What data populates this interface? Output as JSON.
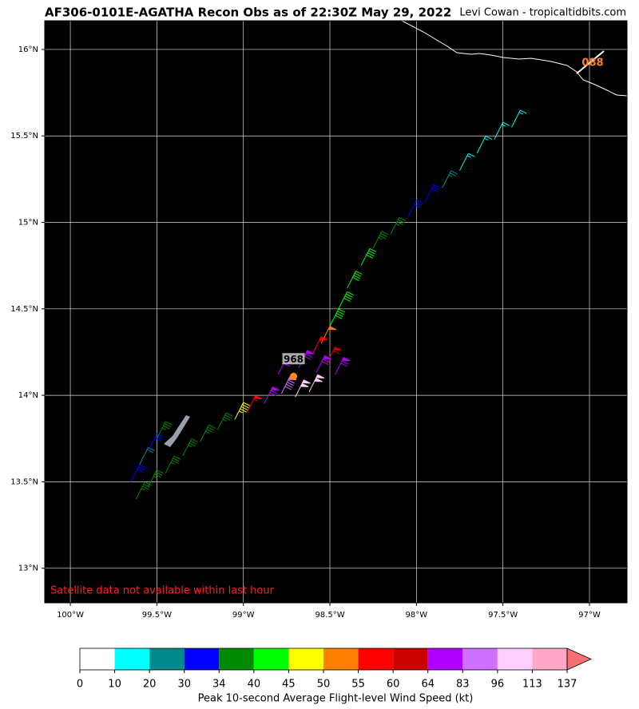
{
  "chart_data": {
    "type": "barbs",
    "title": "AF306-0101E-AGATHA Recon Obs as of 22:30Z May 29, 2022",
    "credit": "Levi Cowan - tropicaltidbits.com",
    "note": "Satellite data not available within last hour",
    "xlim": [
      -100.148,
      -96.783
    ],
    "ylim": [
      12.8,
      16.166
    ],
    "xticks": [
      {
        "value": -100,
        "label": "100°W"
      },
      {
        "value": -99.5,
        "label": "99.5°W"
      },
      {
        "value": -99,
        "label": "99°W"
      },
      {
        "value": -98.5,
        "label": "98.5°W"
      },
      {
        "value": -98,
        "label": "98°W"
      },
      {
        "value": -97.5,
        "label": "97.5°W"
      },
      {
        "value": -97,
        "label": "97°W"
      }
    ],
    "yticks": [
      {
        "value": 13,
        "label": "13°N"
      },
      {
        "value": 13.5,
        "label": "13.5°N"
      },
      {
        "value": 14,
        "label": "14°N"
      },
      {
        "value": 14.5,
        "label": "14.5°N"
      },
      {
        "value": 15,
        "label": "15°N"
      },
      {
        "value": 15.5,
        "label": "15.5°N"
      },
      {
        "value": 16,
        "label": "16°N"
      }
    ],
    "grid": true,
    "observations": {
      "lon": [
        -97.45,
        -97.55,
        -97.65,
        -97.75,
        -97.85,
        -97.95,
        -98.05,
        -98.15,
        -98.25,
        -98.32,
        -98.4,
        -98.45,
        -98.5,
        -98.55,
        -98.6,
        -98.52,
        -98.47,
        -98.58,
        -98.68,
        -98.8,
        -98.78,
        -98.7,
        -98.62,
        -98.88,
        -98.98,
        -99.05,
        -99.15,
        -99.25,
        -99.35,
        -99.45,
        -99.55,
        -99.62,
        -99.65,
        -99.6,
        -99.55,
        -99.5
      ],
      "lat": [
        15.55,
        15.48,
        15.4,
        15.3,
        15.2,
        15.12,
        15.03,
        14.93,
        14.85,
        14.75,
        14.62,
        14.5,
        14.4,
        14.3,
        14.24,
        14.18,
        14.12,
        14.13,
        14.16,
        14.12,
        14.01,
        13.99,
        14.02,
        13.95,
        13.9,
        13.86,
        13.8,
        13.73,
        13.65,
        13.55,
        13.47,
        13.4,
        13.5,
        13.6,
        13.68,
        13.75
      ],
      "speed": [
        15,
        15,
        15,
        15,
        25,
        32,
        32,
        37,
        37,
        42,
        42,
        42,
        42,
        52,
        57,
        62,
        70,
        70,
        70,
        70,
        90,
        100,
        100,
        70,
        57,
        47,
        37,
        37,
        37,
        37,
        37,
        37,
        32,
        22,
        32,
        37
      ]
    },
    "center": {
      "lon": -98.71,
      "lat": 14.11,
      "pressure": 968
    },
    "storm_label": "088",
    "colorbar": {
      "bounds": [
        0,
        10,
        20,
        30,
        34,
        40,
        45,
        50,
        55,
        60,
        64,
        83,
        96,
        113,
        137
      ],
      "colors": [
        "#ffffff",
        "#00ffff",
        "#008b8b",
        "#0000ff",
        "#008b00",
        "#00ff00",
        "#ffff00",
        "#ff7f00",
        "#ff0000",
        "#cd0000",
        "#b000ff",
        "#d070ff",
        "#ffd0ff",
        "#ffa8c8"
      ],
      "extend_color": "#f87070",
      "label": "Peak 10-second Average Flight-level Wind Speed (kt)"
    }
  }
}
